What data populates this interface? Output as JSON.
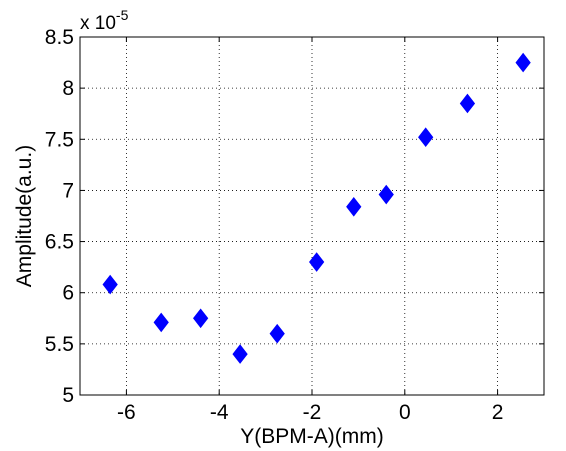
{
  "chart_data": {
    "type": "scatter",
    "title": "",
    "xlabel": "Y(BPM-A)(mm)",
    "ylabel": "Amplitude(a.u.)",
    "y_multiplier_label": "x 10",
    "y_multiplier_exponent": "-5",
    "xlim": [
      -7,
      3
    ],
    "ylim": [
      5,
      8.5
    ],
    "x_ticks": [
      -6,
      -4,
      -2,
      0,
      2
    ],
    "x_tick_labels": [
      "-6",
      "-4",
      "-2",
      "0",
      "2"
    ],
    "y_ticks": [
      5,
      5.5,
      6,
      6.5,
      7,
      7.5,
      8,
      8.5
    ],
    "y_tick_labels": [
      "5",
      "5.5",
      "6",
      "6.5",
      "7",
      "7.5",
      "8",
      "8.5"
    ],
    "grid": true,
    "marker": "diamond",
    "marker_color": "#0000ff",
    "series": [
      {
        "points": [
          {
            "x": -6.35,
            "y": 6.08
          },
          {
            "x": -5.25,
            "y": 5.71
          },
          {
            "x": -4.4,
            "y": 5.75
          },
          {
            "x": -3.55,
            "y": 5.4
          },
          {
            "x": -2.75,
            "y": 5.6
          },
          {
            "x": -1.9,
            "y": 6.3
          },
          {
            "x": -1.1,
            "y": 6.84
          },
          {
            "x": -0.4,
            "y": 6.96
          },
          {
            "x": 0.45,
            "y": 7.52
          },
          {
            "x": 1.35,
            "y": 7.85
          },
          {
            "x": 2.55,
            "y": 8.25
          }
        ]
      }
    ]
  }
}
